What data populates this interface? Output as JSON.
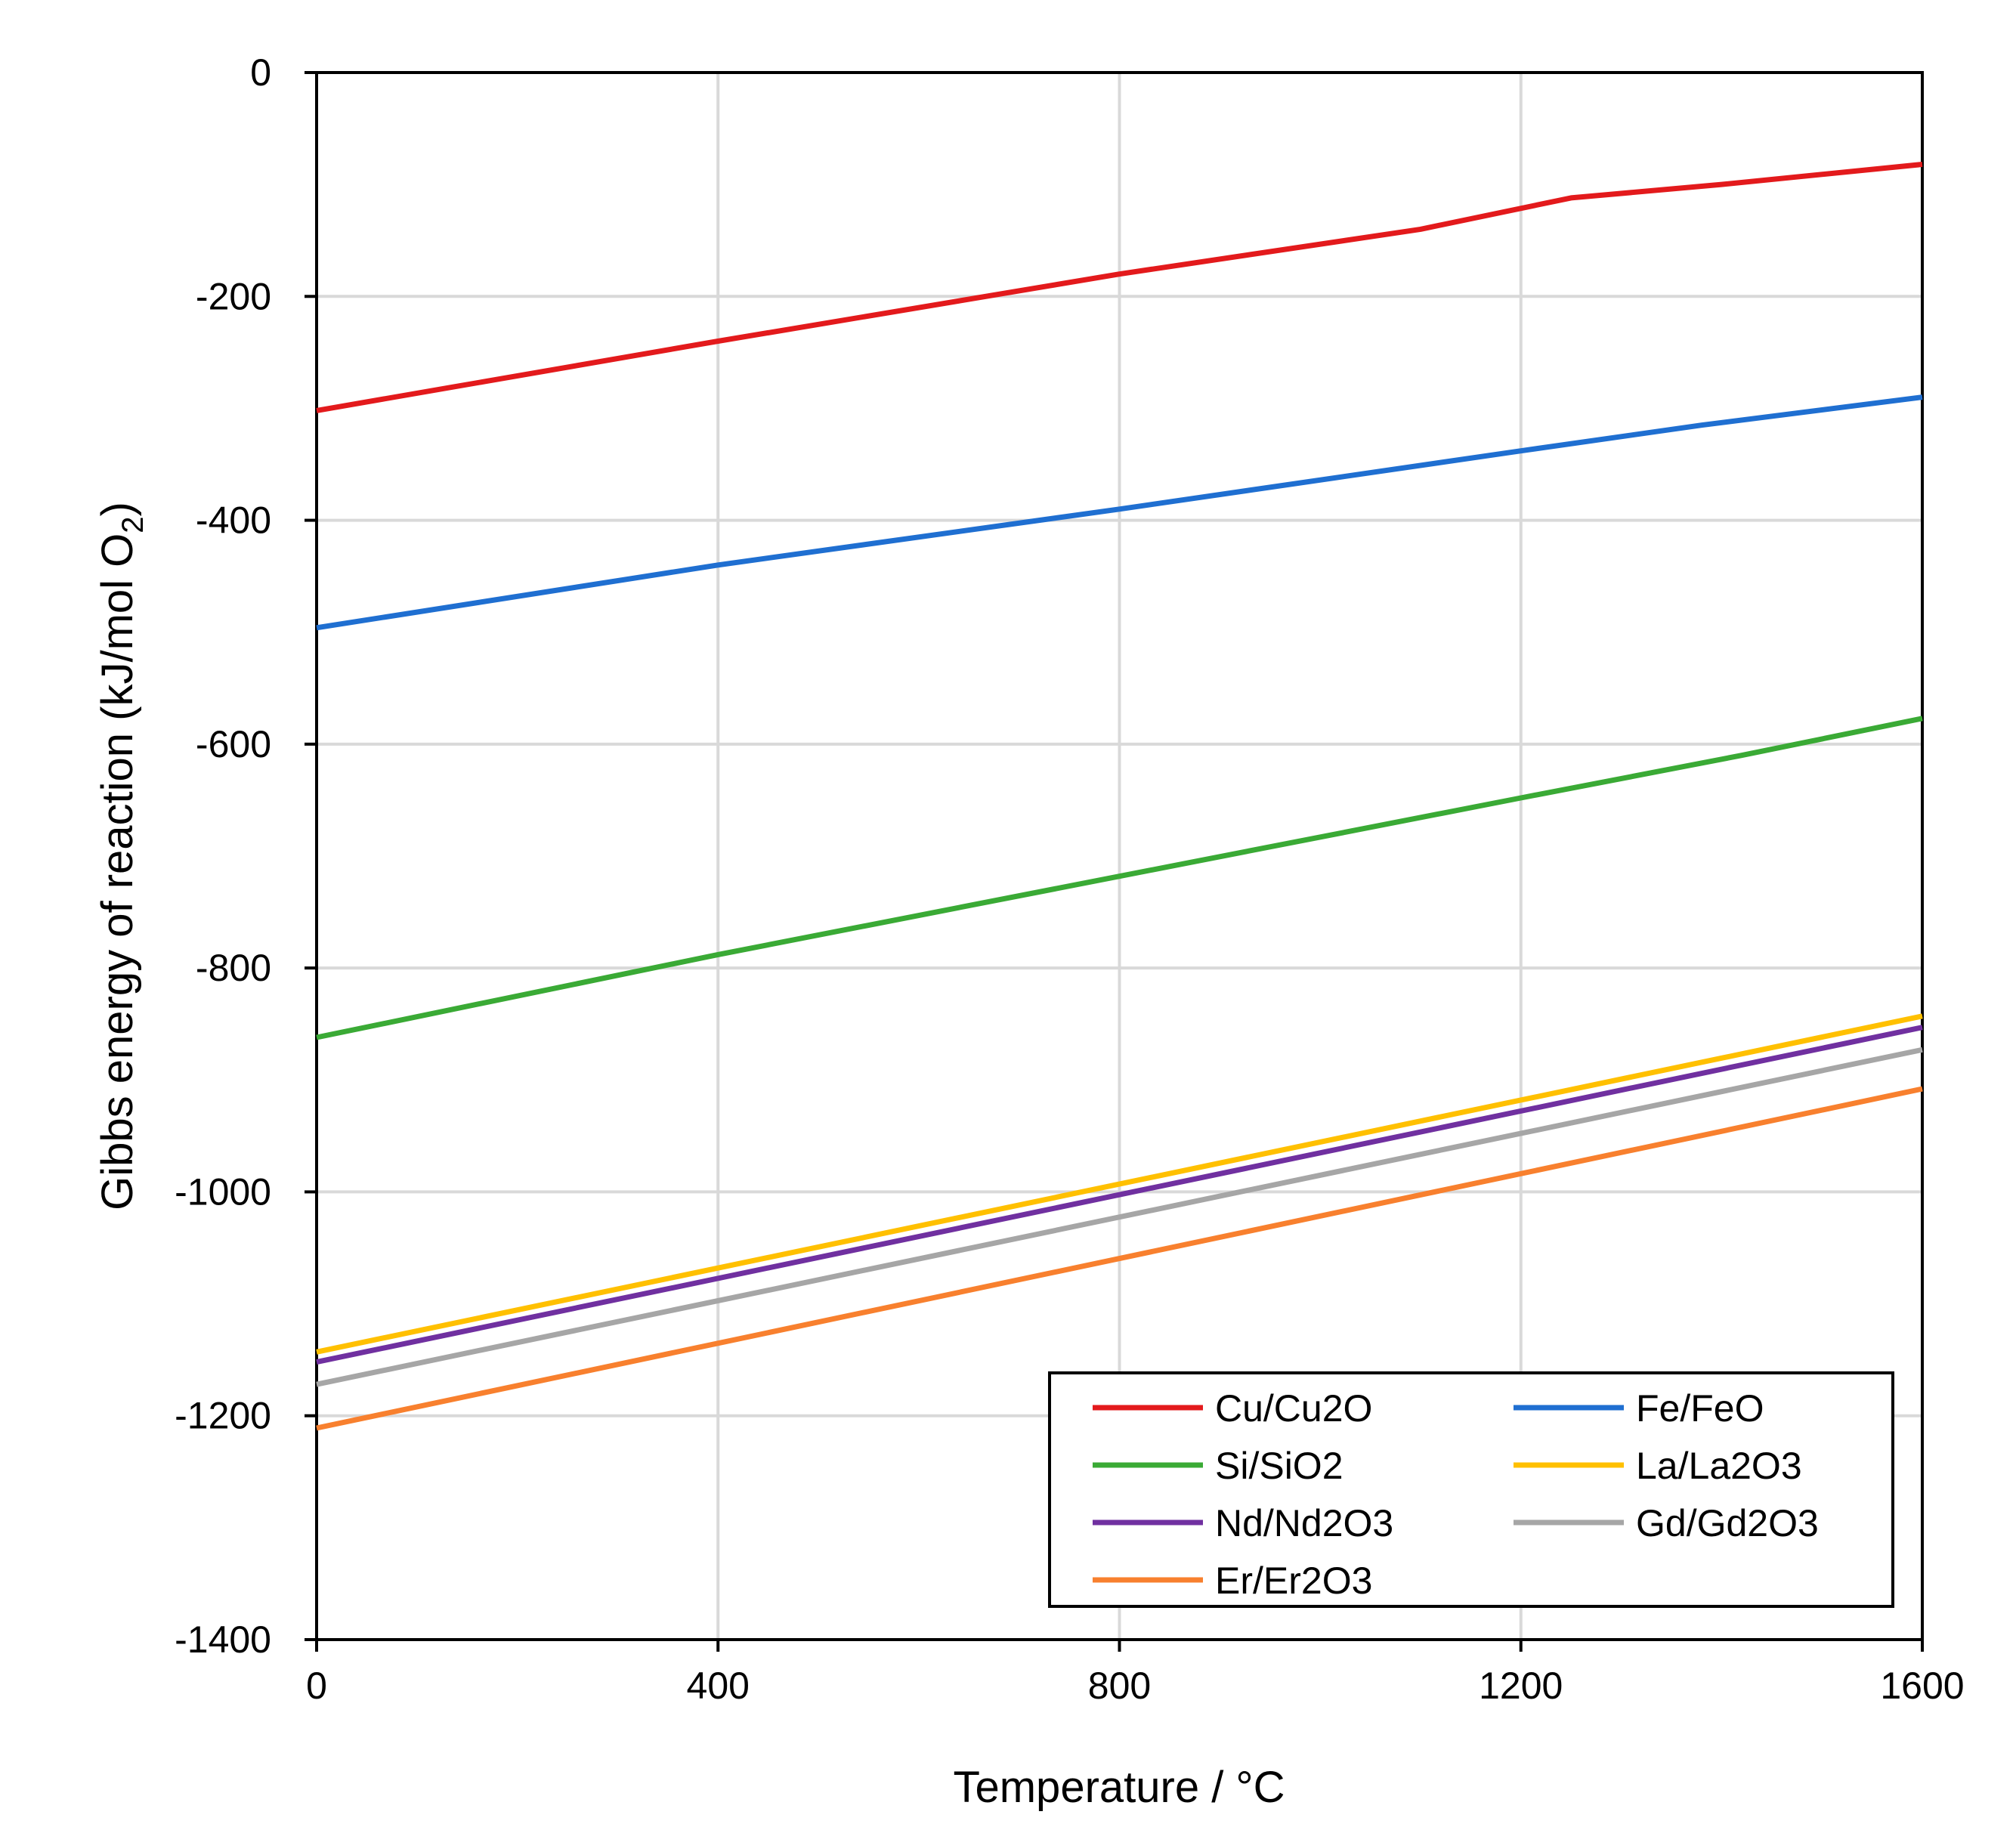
{
  "chart_data": {
    "type": "line",
    "title": "",
    "xlabel": "Temperature / °C",
    "ylabel": {
      "prefix": "Gibbs energy of reaction  (kJ/mol O",
      "subscript": "2",
      "suffix": ")"
    },
    "xlim": [
      0,
      1600
    ],
    "ylim": [
      -1400,
      0
    ],
    "xticks": [
      0,
      400,
      800,
      1200,
      1600
    ],
    "yticks": [
      0,
      -200,
      -400,
      -600,
      -800,
      -1000,
      -1200,
      -1400
    ],
    "grid": true,
    "legend_position": "bottom-right",
    "legend_columns": 2,
    "series": [
      {
        "name": "Cu/Cu2O",
        "color": "#e31a1c",
        "x": [
          0,
          400,
          800,
          1100,
          1250,
          1400,
          1600
        ],
        "y": [
          -302,
          -240,
          -180,
          -140,
          -112,
          -100,
          -82
        ]
      },
      {
        "name": "Fe/FeO",
        "color": "#1f6fd1",
        "x": [
          0,
          400,
          800,
          1200,
          1380,
          1600
        ],
        "y": [
          -496,
          -440,
          -390,
          -338,
          -315,
          -290
        ]
      },
      {
        "name": "Si/SiO2",
        "color": "#3aaa35",
        "x": [
          0,
          400,
          800,
          1200,
          1420,
          1600
        ],
        "y": [
          -862,
          -788,
          -718,
          -648,
          -610,
          -577
        ]
      },
      {
        "name": "La/La2O3",
        "color": "#ffc000",
        "x": [
          0,
          1600
        ],
        "y": [
          -1143,
          -843
        ]
      },
      {
        "name": "Nd/Nd2O3",
        "color": "#7030a0",
        "x": [
          0,
          1600
        ],
        "y": [
          -1152,
          -853
        ]
      },
      {
        "name": "Gd/Gd2O3",
        "color": "#a6a6a6",
        "x": [
          0,
          1600
        ],
        "y": [
          -1172,
          -873
        ]
      },
      {
        "name": "Er/Er2O3",
        "color": "#f8802e",
        "x": [
          0,
          1600
        ],
        "y": [
          -1211,
          -908
        ]
      }
    ]
  }
}
